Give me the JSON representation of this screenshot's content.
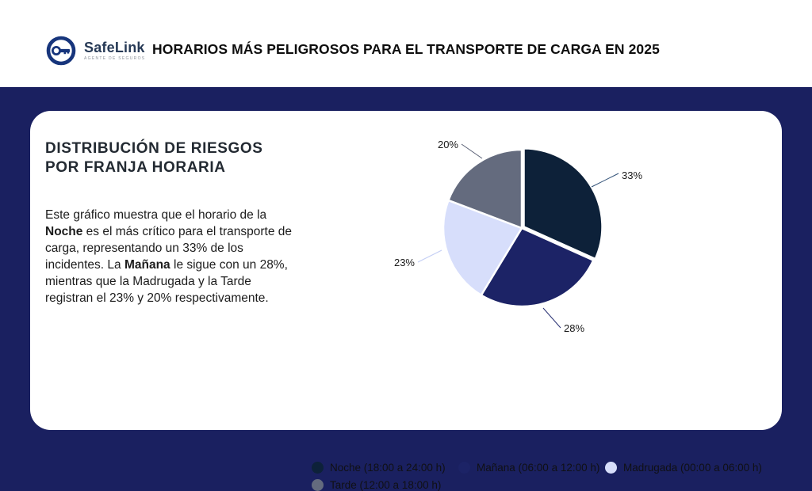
{
  "header": {
    "logo": {
      "name": "SafeLink",
      "tagline": "AGENTE DE SEGUROS",
      "brand_color": "#17357c"
    },
    "title": "HORARIOS MÁS PELIGROSOS PARA EL TRANSPORTE DE CARGA EN 2025"
  },
  "card": {
    "heading_lines": [
      "DISTRIBUCIÓN DE RIESGOS",
      "POR FRANJA HORARIA"
    ],
    "paragraph_segments": [
      {
        "text": "Este gráfico muestra que el horario de la ",
        "bold": false
      },
      {
        "text": "Noche",
        "bold": true
      },
      {
        "text": " es el más crítico para el transporte de carga, representando un 33% de los incidentes. La ",
        "bold": false
      },
      {
        "text": "Mañana",
        "bold": true
      },
      {
        "text": " le sigue con un 28%, mientras que la Madrugada y la Tarde registran el 23% y 20% respectivamente.",
        "bold": false
      }
    ]
  },
  "chart_data": {
    "type": "pie",
    "title": "DISTRIBUCIÓN DE RIESGOS POR FRANJA HORARIA",
    "categories": [
      "Noche (18:00 a 24:00 h)",
      "Mañana (06:00 a 12:00 h)",
      "Madrugada (00:00 a 06:00 h)",
      "Tarde (12:00 a 18:00 h)"
    ],
    "values": [
      33,
      28,
      23,
      20
    ],
    "unit": "%",
    "labels": [
      "33%",
      "28%",
      "23%",
      "20%"
    ],
    "colors": [
      "#0d2139",
      "#1c2366",
      "#d7defb",
      "#646b7e"
    ],
    "leader_line_colors": [
      "#2f4f76",
      "#2b3375",
      "#c3cef5",
      "#5a6175"
    ],
    "start_angle_deg": 0,
    "direction": "clockwise",
    "exploded_slice": "Noche (18:00 a 24:00 h)",
    "legend_position": "bottom"
  },
  "colors": {
    "page_background": "#1a2060",
    "card_background": "#ffffff",
    "header_background": "#ffffff"
  }
}
